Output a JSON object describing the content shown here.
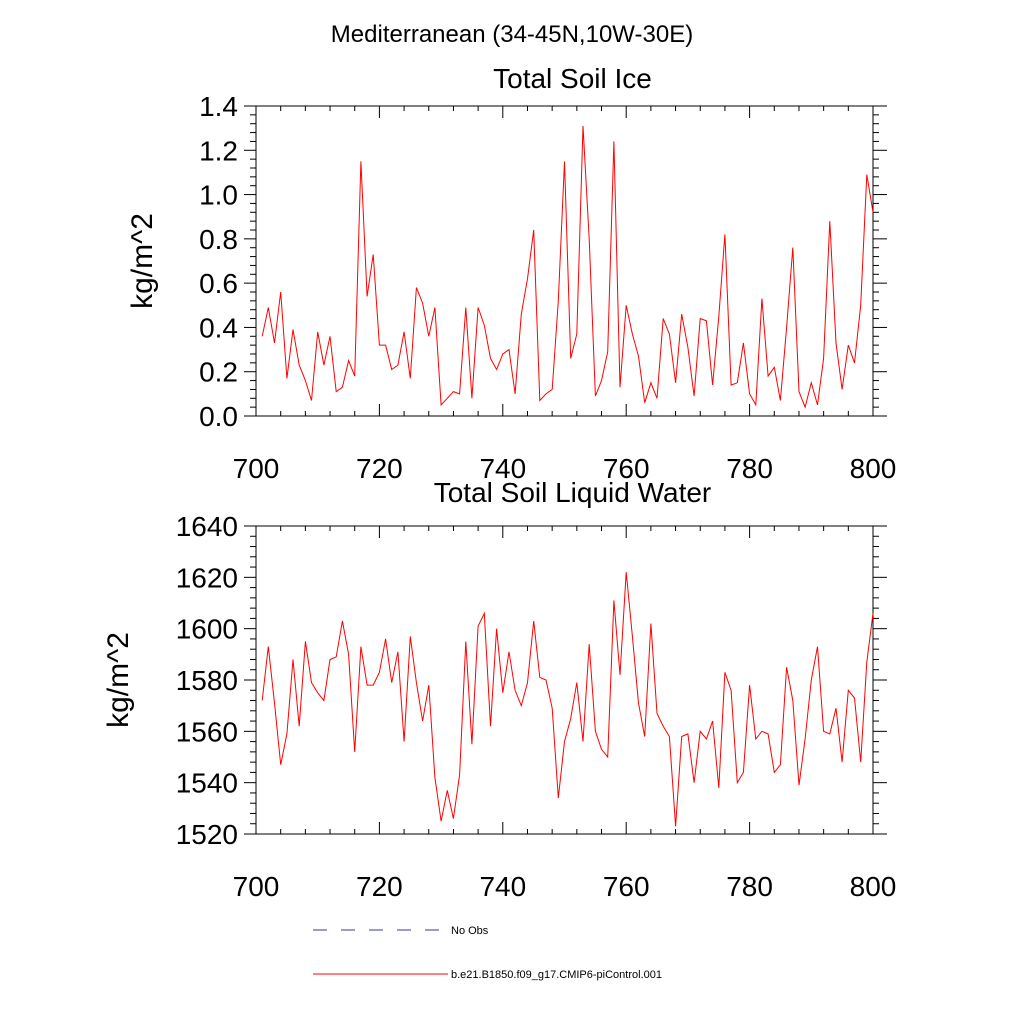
{
  "figure_title": "Mediterranean (34-45N,10W-30E)",
  "legend": [
    {
      "label": "No Obs",
      "style": "dashed",
      "color": "#3a3a9a"
    },
    {
      "label": "b.e21.B1850.f09_g17.CMIP6-piControl.001",
      "style": "solid",
      "color": "#ff0000"
    }
  ],
  "chart_data": [
    {
      "type": "line",
      "title": "Total Soil Ice",
      "xlabel": "",
      "ylabel": "kg/m^2",
      "xlim": [
        700,
        800
      ],
      "ylim": [
        0,
        1.4
      ],
      "xticks": [
        700,
        720,
        740,
        760,
        780,
        800
      ],
      "yticks": [
        "0.0",
        "0.2",
        "0.4",
        "0.6",
        "0.8",
        "1.0",
        "1.2",
        "1.4"
      ],
      "series": [
        {
          "name": "b.e21.B1850.f09_g17.CMIP6-piControl.001",
          "color": "#ff0000",
          "x": [
            701,
            702,
            703,
            704,
            705,
            706,
            707,
            708,
            709,
            710,
            711,
            712,
            713,
            714,
            715,
            716,
            717,
            718,
            719,
            720,
            721,
            722,
            723,
            724,
            725,
            726,
            727,
            728,
            729,
            730,
            731,
            732,
            733,
            734,
            735,
            736,
            737,
            738,
            739,
            740,
            741,
            742,
            743,
            744,
            745,
            746,
            747,
            748,
            749,
            750,
            751,
            752,
            753,
            754,
            755,
            756,
            757,
            758,
            759,
            760,
            761,
            762,
            763,
            764,
            765,
            766,
            767,
            768,
            769,
            770,
            771,
            772,
            773,
            774,
            775,
            776,
            777,
            778,
            779,
            780,
            781,
            782,
            783,
            784,
            785,
            786,
            787,
            788,
            789,
            790,
            791,
            792,
            793,
            794,
            795,
            796,
            797,
            798,
            799,
            800
          ],
          "values": [
            0.36,
            0.49,
            0.33,
            0.56,
            0.17,
            0.39,
            0.23,
            0.16,
            0.07,
            0.38,
            0.23,
            0.36,
            0.11,
            0.13,
            0.25,
            0.18,
            1.15,
            0.54,
            0.73,
            0.32,
            0.32,
            0.21,
            0.23,
            0.38,
            0.17,
            0.58,
            0.51,
            0.36,
            0.49,
            0.05,
            0.08,
            0.11,
            0.1,
            0.49,
            0.08,
            0.49,
            0.41,
            0.26,
            0.21,
            0.28,
            0.3,
            0.1,
            0.46,
            0.62,
            0.84,
            0.07,
            0.1,
            0.12,
            0.52,
            1.15,
            0.26,
            0.37,
            1.31,
            0.8,
            0.09,
            0.16,
            0.29,
            1.24,
            0.13,
            0.5,
            0.37,
            0.27,
            0.06,
            0.15,
            0.08,
            0.44,
            0.37,
            0.15,
            0.46,
            0.31,
            0.09,
            0.44,
            0.43,
            0.14,
            0.45,
            0.82,
            0.14,
            0.15,
            0.33,
            0.1,
            0.05,
            0.53,
            0.18,
            0.22,
            0.07,
            0.4,
            0.76,
            0.11,
            0.04,
            0.15,
            0.05,
            0.26,
            0.88,
            0.33,
            0.12,
            0.32,
            0.24,
            0.5,
            1.09,
            0.92
          ]
        }
      ]
    },
    {
      "type": "line",
      "title": "Total Soil Liquid Water",
      "xlabel": "",
      "ylabel": "kg/m^2",
      "xlim": [
        700,
        800
      ],
      "ylim": [
        1520,
        1640
      ],
      "xticks": [
        700,
        720,
        740,
        760,
        780,
        800
      ],
      "yticks": [
        "1520",
        "1540",
        "1560",
        "1580",
        "1600",
        "1620",
        "1640"
      ],
      "series": [
        {
          "name": "b.e21.B1850.f09_g17.CMIP6-piControl.001",
          "color": "#ff0000",
          "x": [
            701,
            702,
            703,
            704,
            705,
            706,
            707,
            708,
            709,
            710,
            711,
            712,
            713,
            714,
            715,
            716,
            717,
            718,
            719,
            720,
            721,
            722,
            723,
            724,
            725,
            726,
            727,
            728,
            729,
            730,
            731,
            732,
            733,
            734,
            735,
            736,
            737,
            738,
            739,
            740,
            741,
            742,
            743,
            744,
            745,
            746,
            747,
            748,
            749,
            750,
            751,
            752,
            753,
            754,
            755,
            756,
            757,
            758,
            759,
            760,
            761,
            762,
            763,
            764,
            765,
            766,
            767,
            768,
            769,
            770,
            771,
            772,
            773,
            774,
            775,
            776,
            777,
            778,
            779,
            780,
            781,
            782,
            783,
            784,
            785,
            786,
            787,
            788,
            789,
            790,
            791,
            792,
            793,
            794,
            795,
            796,
            797,
            798,
            799,
            800
          ],
          "values": [
            1572,
            1593,
            1571,
            1547,
            1559,
            1588,
            1562,
            1595,
            1579,
            1575,
            1572,
            1588,
            1589,
            1603,
            1590,
            1552,
            1593,
            1578,
            1578,
            1583,
            1596,
            1579,
            1591,
            1556,
            1597,
            1579,
            1564,
            1578,
            1542,
            1525,
            1537,
            1526,
            1543,
            1595,
            1555,
            1601,
            1606,
            1562,
            1600,
            1575,
            1591,
            1576,
            1570,
            1579,
            1603,
            1581,
            1580,
            1569,
            1534,
            1556,
            1565,
            1579,
            1556,
            1594,
            1560,
            1553,
            1550,
            1611,
            1582,
            1622,
            1597,
            1571,
            1558,
            1602,
            1567,
            1562,
            1558,
            1523,
            1558,
            1559,
            1540,
            1560,
            1557,
            1564,
            1538,
            1583,
            1576,
            1540,
            1544,
            1578,
            1557,
            1560,
            1559,
            1544,
            1547,
            1585,
            1572,
            1539,
            1557,
            1580,
            1593,
            1560,
            1559,
            1569,
            1548,
            1576,
            1573,
            1548,
            1587,
            1606
          ]
        }
      ]
    }
  ]
}
